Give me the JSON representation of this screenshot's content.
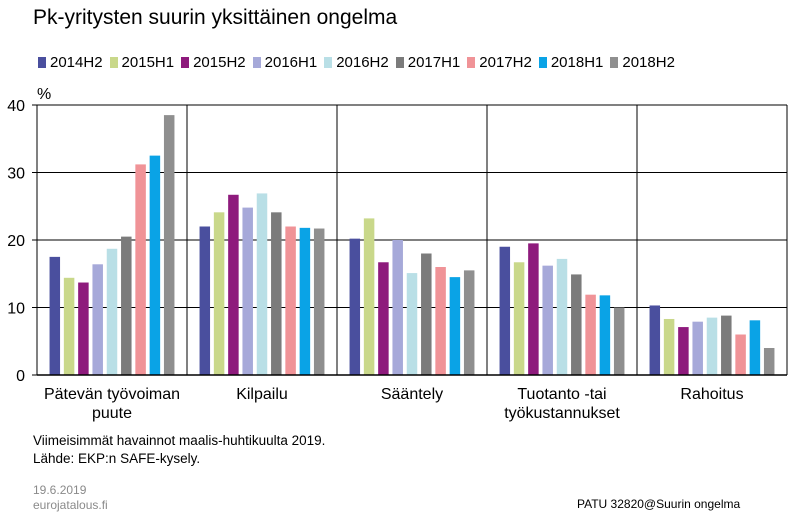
{
  "chart_data": {
    "type": "bar",
    "title": "Pk-yritysten suurin yksittäinen ongelma",
    "ylabel": "%",
    "ylim": [
      0,
      40
    ],
    "yticks": [
      0,
      10,
      20,
      30,
      40
    ],
    "legend_position": "top",
    "categories": [
      [
        "Pätevän työvoiman",
        "puute"
      ],
      [
        "Kilpailu"
      ],
      [
        "Sääntely"
      ],
      [
        "Tuotanto -tai",
        "työkustannukset"
      ],
      [
        "Rahoitus"
      ]
    ],
    "series": [
      {
        "name": "2014H2",
        "color": "#4a4f9e",
        "values": [
          17.5,
          22.0,
          20.2,
          19.0,
          10.3
        ]
      },
      {
        "name": "2015H1",
        "color": "#c9d88a",
        "values": [
          14.4,
          24.1,
          23.2,
          16.7,
          8.3
        ]
      },
      {
        "name": "2015H2",
        "color": "#8e1a7c",
        "values": [
          13.7,
          26.7,
          16.7,
          19.5,
          7.1
        ]
      },
      {
        "name": "2016H1",
        "color": "#a6a9d9",
        "values": [
          16.4,
          24.8,
          20.0,
          16.2,
          7.9
        ]
      },
      {
        "name": "2016H2",
        "color": "#b9dfe6",
        "values": [
          18.7,
          26.9,
          15.1,
          17.2,
          8.5
        ]
      },
      {
        "name": "2017H1",
        "color": "#7b7b7b",
        "values": [
          20.5,
          24.1,
          18.0,
          14.9,
          8.8
        ]
      },
      {
        "name": "2017H2",
        "color": "#f09397",
        "values": [
          31.2,
          22.0,
          16.0,
          11.9,
          6.0
        ]
      },
      {
        "name": "2018H1",
        "color": "#0aa3e6",
        "values": [
          32.5,
          21.8,
          14.5,
          11.8,
          8.1
        ]
      },
      {
        "name": "2018H2",
        "color": "#8f8f8f",
        "values": [
          38.5,
          21.7,
          15.5,
          10.0,
          4.0
        ]
      }
    ]
  },
  "notes": {
    "line1": "Viimeisimmät havainnot maalis-huhtikuulta 2019.",
    "line2": "Lähde: EKP:n SAFE-kysely."
  },
  "footer": {
    "date": "19.6.2019",
    "site": "eurojatalous.fi",
    "code": "PATU 32820@Suurin  ongelma"
  }
}
